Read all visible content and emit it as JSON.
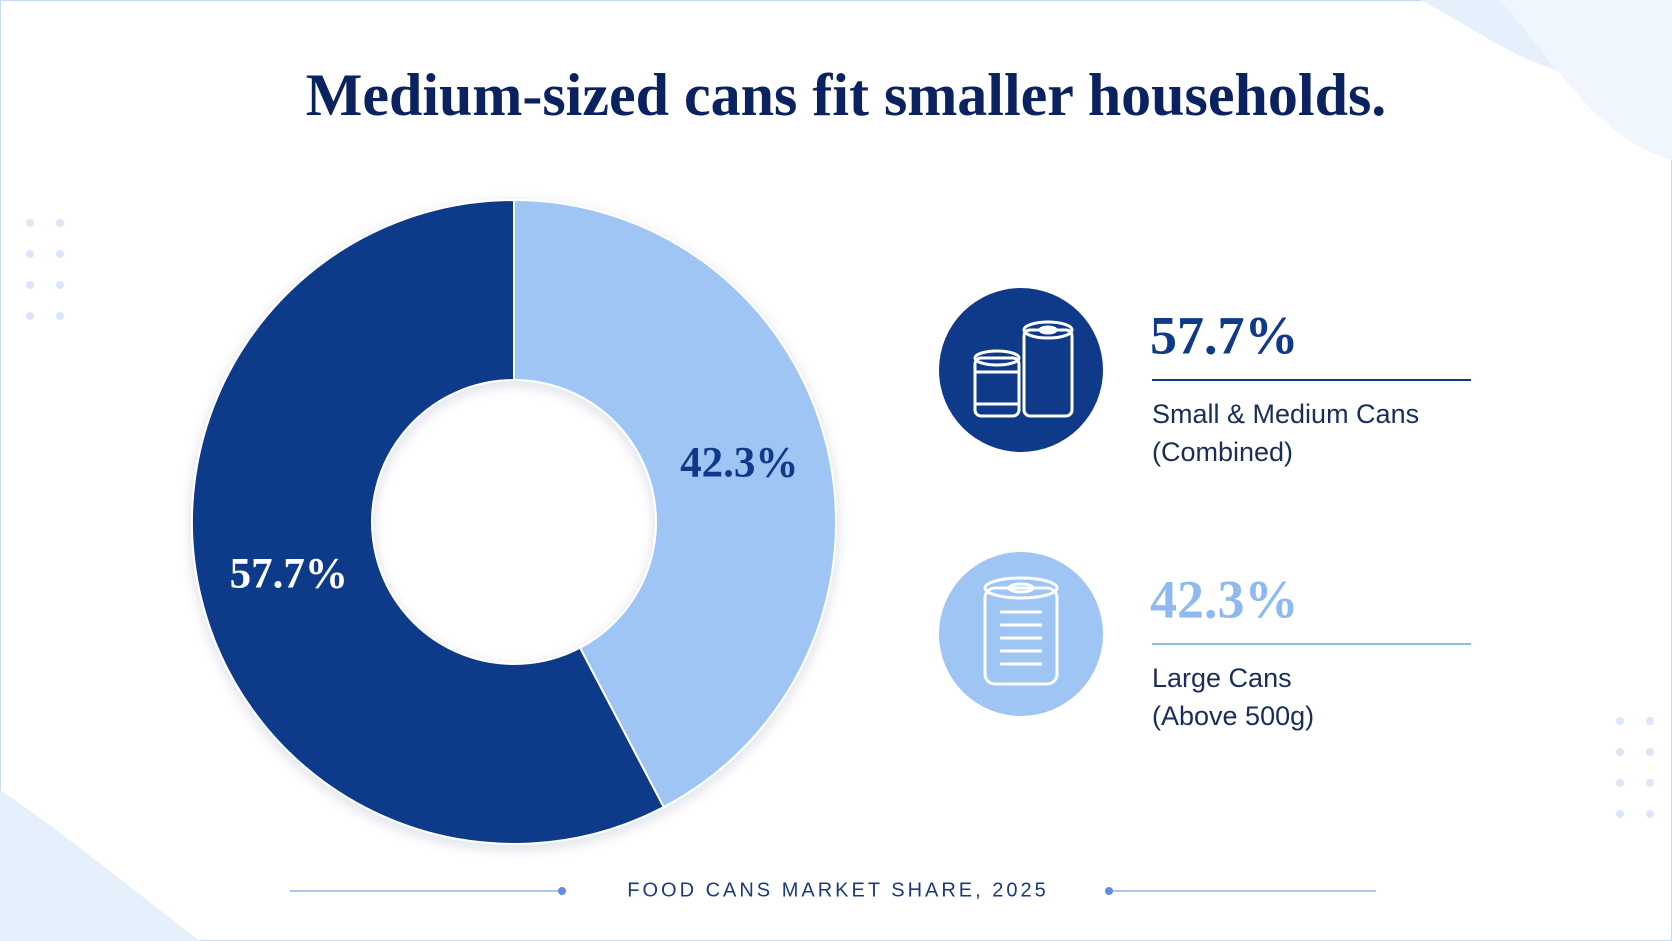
{
  "chart_data": {
    "type": "donut",
    "title": "Medium-sized cans fit smaller households.",
    "caption": "FOOD CANS MARKET SHARE, 2025",
    "categories": [
      "Small & Medium Cans (Combined)",
      "Large Cans (Above 500g)"
    ],
    "values": [
      57.7,
      42.3
    ],
    "value_labels": [
      "57.7%",
      "42.3%"
    ],
    "colors": [
      "#0f3a8a",
      "#9ec5f4"
    ],
    "label_colors": [
      "#ffffff",
      "#0f3a8a"
    ]
  }
}
